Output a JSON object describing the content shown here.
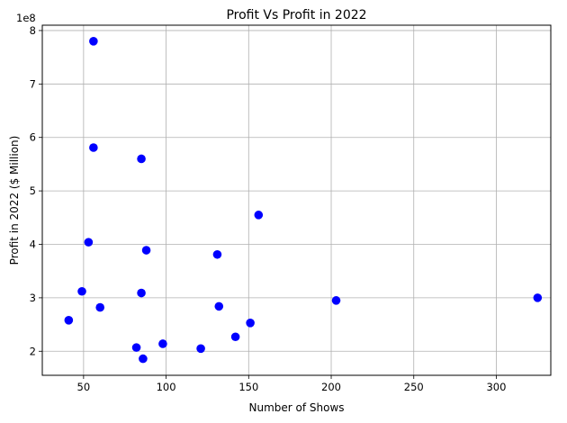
{
  "chart_data": {
    "type": "scatter",
    "title": "Profit Vs Profit in 2022",
    "xlabel": "Number of Shows",
    "ylabel": "Profit in 2022 ($ Million)",
    "y_offset_label": "1e8",
    "xlim": [
      25,
      333
    ],
    "ylim": [
      1.55,
      8.1
    ],
    "x_ticks": [
      50,
      100,
      150,
      200,
      250,
      300
    ],
    "y_ticks": [
      2,
      3,
      4,
      5,
      6,
      7,
      8
    ],
    "grid": true,
    "marker_color": "#0000ff",
    "series": [
      {
        "points": [
          {
            "x": 56,
            "y": 7.8
          },
          {
            "x": 56,
            "y": 5.81
          },
          {
            "x": 85,
            "y": 5.6
          },
          {
            "x": 156,
            "y": 4.55
          },
          {
            "x": 53,
            "y": 4.04
          },
          {
            "x": 88,
            "y": 3.89
          },
          {
            "x": 131,
            "y": 3.81
          },
          {
            "x": 49,
            "y": 3.12
          },
          {
            "x": 85,
            "y": 3.09
          },
          {
            "x": 203,
            "y": 2.95
          },
          {
            "x": 325,
            "y": 3.0
          },
          {
            "x": 60,
            "y": 2.82
          },
          {
            "x": 132,
            "y": 2.84
          },
          {
            "x": 41,
            "y": 2.58
          },
          {
            "x": 151,
            "y": 2.53
          },
          {
            "x": 142,
            "y": 2.27
          },
          {
            "x": 98,
            "y": 2.14
          },
          {
            "x": 82,
            "y": 2.07
          },
          {
            "x": 121,
            "y": 2.05
          },
          {
            "x": 86,
            "y": 1.86
          }
        ]
      }
    ]
  }
}
